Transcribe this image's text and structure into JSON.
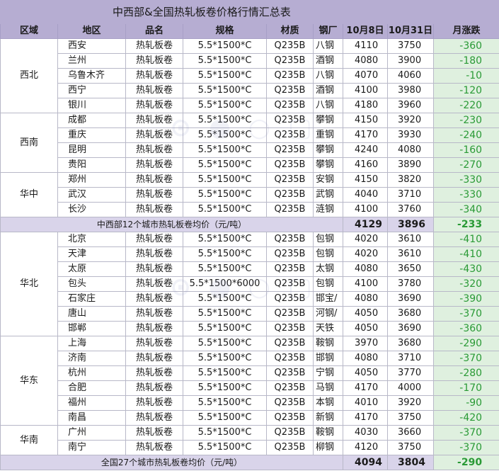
{
  "title": "中西部&全国热轧板卷价格行情汇总表",
  "headers": [
    "区域",
    "地区",
    "品名",
    "规格",
    "材质",
    "钢厂",
    "10月8日",
    "10月31日",
    "月涨跌"
  ],
  "groups": [
    {
      "region": "西北",
      "rows": [
        {
          "city": "西安",
          "product": "热轧板卷",
          "spec": "5.5*1500*C",
          "material": "Q235B",
          "mill": "八钢",
          "p1": "4110",
          "p2": "3750",
          "chg": "-360"
        },
        {
          "city": "兰州",
          "product": "热轧板卷",
          "spec": "5.5*1500*C",
          "material": "Q235B",
          "mill": "酒钢",
          "p1": "4080",
          "p2": "3900",
          "chg": "-180"
        },
        {
          "city": "乌鲁木齐",
          "product": "热轧板卷",
          "spec": "5.5*1500*C",
          "material": "Q235B",
          "mill": "八钢",
          "p1": "4070",
          "p2": "4060",
          "chg": "-10"
        },
        {
          "city": "西宁",
          "product": "热轧板卷",
          "spec": "5.5*1500*C",
          "material": "Q235B",
          "mill": "酒钢",
          "p1": "4100",
          "p2": "3980",
          "chg": "-120"
        },
        {
          "city": "银川",
          "product": "热轧板卷",
          "spec": "5.5*1500*C",
          "material": "Q235B",
          "mill": "八钢",
          "p1": "4180",
          "p2": "3960",
          "chg": "-220"
        }
      ]
    },
    {
      "region": "西南",
      "rows": [
        {
          "city": "成都",
          "product": "热轧板卷",
          "spec": "5.5*1500*C",
          "material": "Q235B",
          "mill": "攀钢",
          "p1": "4150",
          "p2": "3920",
          "chg": "-230"
        },
        {
          "city": "重庆",
          "product": "热轧板卷",
          "spec": "5.5*1500*C",
          "material": "Q235B",
          "mill": "重钢",
          "p1": "4170",
          "p2": "3930",
          "chg": "-240"
        },
        {
          "city": "昆明",
          "product": "热轧板卷",
          "spec": "5.5*1500*C",
          "material": "Q235B",
          "mill": "攀钢",
          "p1": "4240",
          "p2": "4080",
          "chg": "-160"
        },
        {
          "city": "贵阳",
          "product": "热轧板卷",
          "spec": "5.5*1500*C",
          "material": "Q235B",
          "mill": "攀钢",
          "p1": "4160",
          "p2": "3890",
          "chg": "-270"
        }
      ]
    },
    {
      "region": "华中",
      "rows": [
        {
          "city": "郑州",
          "product": "热轧板卷",
          "spec": "5.5*1500*C",
          "material": "Q235B",
          "mill": "安钢",
          "p1": "4150",
          "p2": "3820",
          "chg": "-330"
        },
        {
          "city": "武汉",
          "product": "热轧板卷",
          "spec": "5.5*1500*C",
          "material": "Q235B",
          "mill": "武钢",
          "p1": "4040",
          "p2": "3710",
          "chg": "-330"
        },
        {
          "city": "长沙",
          "product": "热轧板卷",
          "spec": "5.5*1500*C",
          "material": "Q235B",
          "mill": "涟钢",
          "p1": "4100",
          "p2": "3760",
          "chg": "-340"
        }
      ]
    }
  ],
  "avg_midwest": {
    "label": "中西部12个城市热轧板卷均价（元/吨）",
    "p1": "4129",
    "p2": "3896",
    "chg": "-233"
  },
  "groups2": [
    {
      "region": "华北",
      "rows": [
        {
          "city": "北京",
          "product": "热轧板卷",
          "spec": "5.5*1500*C",
          "material": "Q235B",
          "mill": "包钢",
          "p1": "4020",
          "p2": "3610",
          "chg": "-410"
        },
        {
          "city": "天津",
          "product": "热轧板卷",
          "spec": "5.5*1500*C",
          "material": "Q235B",
          "mill": "包钢",
          "p1": "4020",
          "p2": "3610",
          "chg": "-410"
        },
        {
          "city": "太原",
          "product": "热轧板卷",
          "spec": "5.5*1500*C",
          "material": "Q235B",
          "mill": "太钢",
          "p1": "4080",
          "p2": "3650",
          "chg": "-430"
        },
        {
          "city": "包头",
          "product": "热轧板卷",
          "spec": "5.5*1500*6000",
          "material": "Q235B",
          "mill": "包钢",
          "p1": "4100",
          "p2": "3780",
          "chg": "-320"
        },
        {
          "city": "石家庄",
          "product": "热轧板卷",
          "spec": "5.5*1500*C",
          "material": "Q235B",
          "mill": "邯宝/",
          "p1": "4080",
          "p2": "3690",
          "chg": "-390"
        },
        {
          "city": "唐山",
          "product": "热轧板卷",
          "spec": "5.5*1500*C",
          "material": "Q235B",
          "mill": "河钢/",
          "p1": "4050",
          "p2": "3680",
          "chg": "-370"
        },
        {
          "city": "邯郸",
          "product": "热轧板卷",
          "spec": "5.5*1500*C",
          "material": "Q235B",
          "mill": "天铁",
          "p1": "4050",
          "p2": "3690",
          "chg": "-360"
        }
      ]
    },
    {
      "region": "华东",
      "rows": [
        {
          "city": "上海",
          "product": "热轧板卷",
          "spec": "5.5*1500*C",
          "material": "Q235B",
          "mill": "鞍钢",
          "p1": "3970",
          "p2": "3680",
          "chg": "-290"
        },
        {
          "city": "济南",
          "product": "热轧板卷",
          "spec": "5.5*1500*C",
          "material": "Q235B",
          "mill": "邯钢",
          "p1": "4080",
          "p2": "3710",
          "chg": "-370"
        },
        {
          "city": "杭州",
          "product": "热轧板卷",
          "spec": "5.5*1500*C",
          "material": "Q235B",
          "mill": "宁钢",
          "p1": "4050",
          "p2": "3770",
          "chg": "-280"
        },
        {
          "city": "合肥",
          "product": "热轧板卷",
          "spec": "5.5*1500*C",
          "material": "Q235B",
          "mill": "马钢",
          "p1": "4170",
          "p2": "4000",
          "chg": "-170"
        },
        {
          "city": "福州",
          "product": "热轧板卷",
          "spec": "5.5*1500*C",
          "material": "Q235B",
          "mill": "本钢",
          "p1": "4010",
          "p2": "3920",
          "chg": "-90"
        },
        {
          "city": "南昌",
          "product": "热轧板卷",
          "spec": "5.5*1500*C",
          "material": "Q235B",
          "mill": "新钢",
          "p1": "4170",
          "p2": "3750",
          "chg": "-420"
        }
      ]
    },
    {
      "region": "华南",
      "rows": [
        {
          "city": "广州",
          "product": "热轧板卷",
          "spec": "5.5*1500*C",
          "material": "Q235B",
          "mill": "鞍钢",
          "p1": "4030",
          "p2": "3660",
          "chg": "-370"
        },
        {
          "city": "南宁",
          "product": "热轧板卷",
          "spec": "5.5*1500*C",
          "material": "Q235B",
          "mill": "柳钢",
          "p1": "4120",
          "p2": "3750",
          "chg": "-370"
        }
      ]
    }
  ],
  "avg_national": {
    "label": "全国27个城市热轧板卷均价（元/吨）",
    "p1": "4094",
    "p2": "3804",
    "chg": "-290"
  },
  "colors": {
    "header_bg": "#b6add2",
    "avg_bg": "#d9d4ea",
    "change_bg": "#dff0df",
    "change_text": "#2a9a36"
  }
}
